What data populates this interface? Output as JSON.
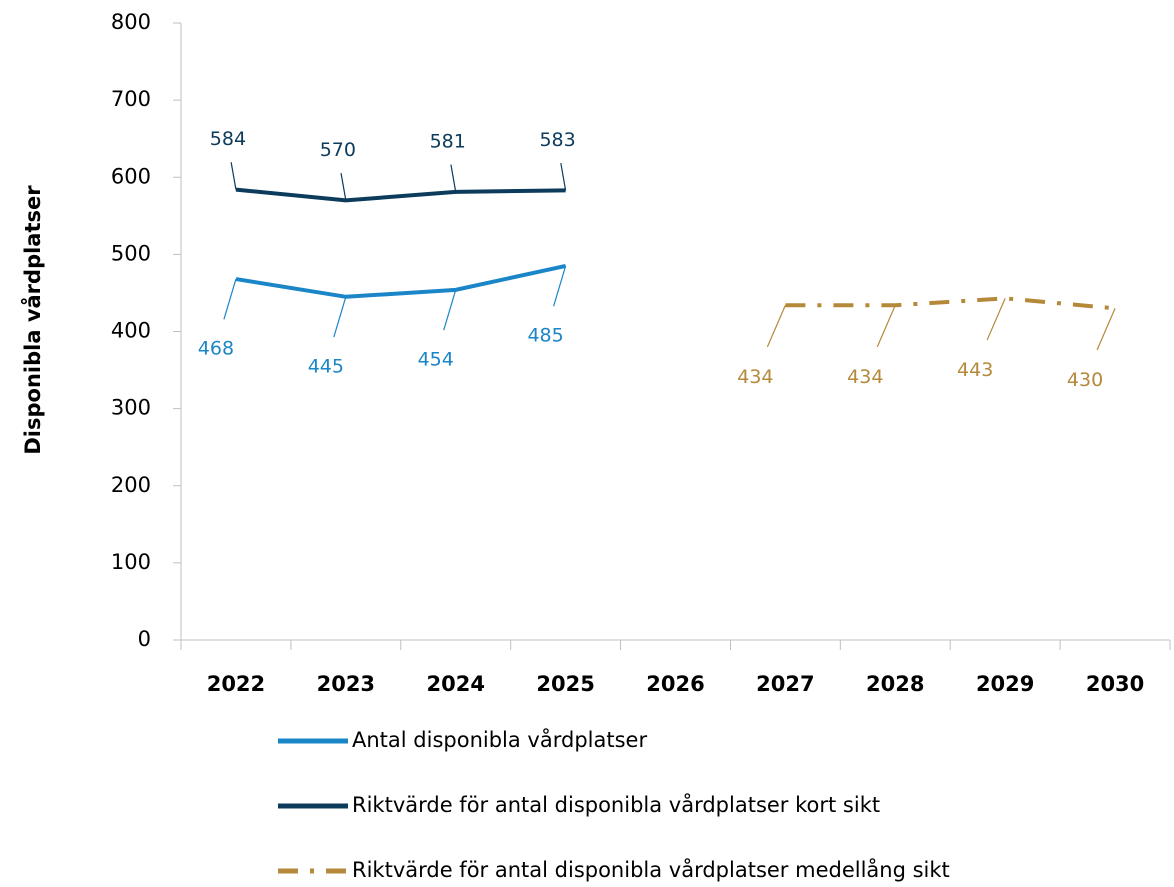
{
  "chart_data": {
    "type": "line",
    "y_label": "Disponibla vårdplatser",
    "categories": [
      "2022",
      "2023",
      "2024",
      "2025",
      "2026",
      "2027",
      "2028",
      "2029",
      "2030"
    ],
    "series": [
      {
        "name": "Antal disponibla vårdplatser",
        "color": "#1a86c7",
        "style": "solid",
        "values": [
          468,
          445,
          454,
          485,
          null,
          null,
          null,
          null,
          null
        ]
      },
      {
        "name": "Riktvärde för antal disponibla vårdplatser kort sikt",
        "color": "#0d3b5c",
        "style": "solid",
        "values": [
          584,
          570,
          581,
          583,
          null,
          null,
          null,
          null,
          null
        ]
      },
      {
        "name": "Riktvärde för antal disponibla vårdplatser medellång sikt",
        "color": "#b5893a",
        "style": "dashdot",
        "values": [
          null,
          null,
          null,
          null,
          null,
          434,
          434,
          443,
          430
        ]
      }
    ],
    "ylim": [
      0,
      800
    ],
    "yticks": [
      0,
      100,
      200,
      300,
      400,
      500,
      600,
      700,
      800
    ]
  }
}
